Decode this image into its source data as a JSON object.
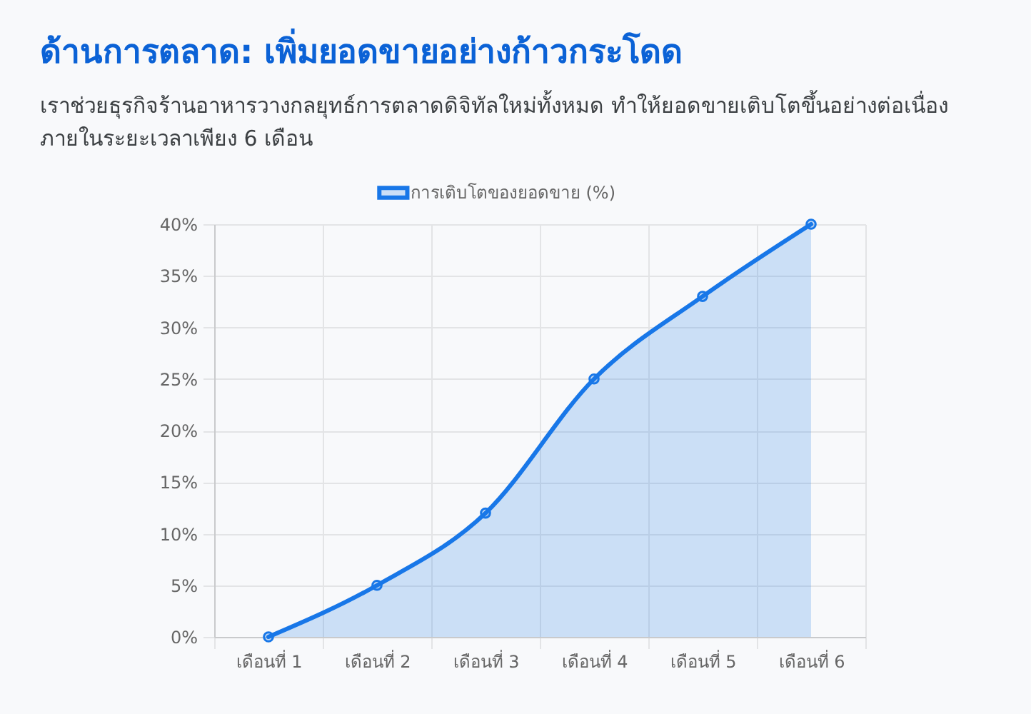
{
  "chart_data": {
    "type": "area",
    "title": "ด้านการตลาด: เพิ่มยอดขายอย่างก้าวกระโดด",
    "subtitle": "เราช่วยธุรกิจร้านอาหารวางกลยุทธ์การตลาดดิจิทัลใหม่ทั้งหมด ทำให้ยอดขายเติบโตขึ้นอย่างต่อเนื่อง ภายในระยะเวลาเพียง 6 เดือน",
    "categories": [
      "เดือนที่ 1",
      "เดือนที่ 2",
      "เดือนที่ 3",
      "เดือนที่ 4",
      "เดือนที่ 5",
      "เดือนที่ 6"
    ],
    "series": [
      {
        "name": "การเติบโตของยอดขาย (%)",
        "color": "#1877e8",
        "values": [
          0,
          5,
          12,
          25,
          33,
          40
        ]
      }
    ],
    "ylim": [
      0,
      40
    ],
    "yticks": [
      {
        "value": 0,
        "label": "0%"
      },
      {
        "value": 5,
        "label": "5%"
      },
      {
        "value": 10,
        "label": "10%"
      },
      {
        "value": 15,
        "label": "15%"
      },
      {
        "value": 20,
        "label": "20%"
      },
      {
        "value": 25,
        "label": "25%"
      },
      {
        "value": 30,
        "label": "30%"
      },
      {
        "value": 35,
        "label": "35%"
      },
      {
        "value": 40,
        "label": "40%"
      }
    ],
    "grid": true,
    "legend": "top",
    "marker": "circle"
  }
}
